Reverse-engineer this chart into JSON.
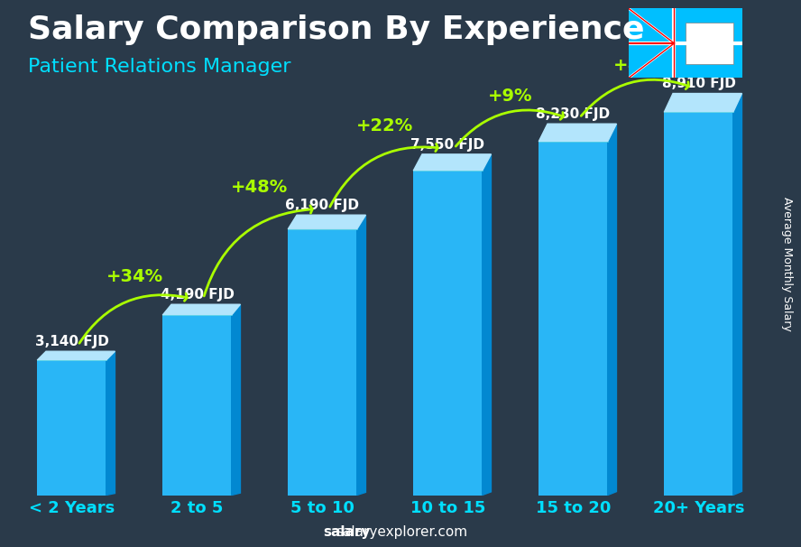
{
  "title": "Salary Comparison By Experience",
  "subtitle": "Patient Relations Manager",
  "categories": [
    "< 2 Years",
    "2 to 5",
    "5 to 10",
    "10 to 15",
    "15 to 20",
    "20+ Years"
  ],
  "values": [
    3140,
    4190,
    6190,
    7550,
    8230,
    8910
  ],
  "value_labels": [
    "3,140 FJD",
    "4,190 FJD",
    "6,190 FJD",
    "7,550 FJD",
    "8,230 FJD",
    "8,910 FJD"
  ],
  "pct_changes": [
    "+34%",
    "+48%",
    "+22%",
    "+9%",
    "+8%"
  ],
  "bar_color_face": "#00BFFF",
  "bar_color_edge": "#00FFFF",
  "bar_color_top": "#87CEEB",
  "title_color": "#FFFFFF",
  "subtitle_color": "#00DFFF",
  "label_color": "#FFFFFF",
  "pct_color": "#AAFF00",
  "axis_label_color": "#00BFFF",
  "watermark": "salaryexplorer.com",
  "right_label": "Average Monthly Salary",
  "bg_color": "#1a1a2e",
  "ymax": 10000,
  "title_fontsize": 26,
  "subtitle_fontsize": 16,
  "value_fontsize": 11,
  "pct_fontsize": 14,
  "tick_fontsize": 13
}
